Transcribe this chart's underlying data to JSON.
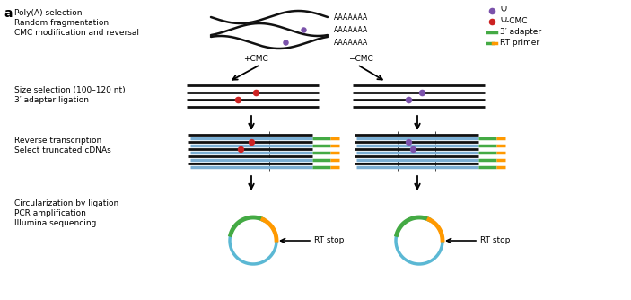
{
  "title": "a",
  "legend": {
    "psi_color": "#7B52AB",
    "psi_cmc_color": "#CC2222",
    "adapter_color": "#44AA44",
    "rt_orange": "#FF9900",
    "psi_label": "Ψ",
    "psi_cmc_label": "Ψ-CMC",
    "adapter_label": "3′ adapter",
    "rt_primer_label": "RT primer"
  },
  "text": {
    "step1": [
      "Poly(A) selection",
      "Random fragmentation",
      "CMC modification and reversal"
    ],
    "step2_left": [
      "Size selection (100–120 nt)",
      "3′ adapter ligation"
    ],
    "step3_left": [
      "Reverse transcription",
      "Select truncated cDNAs"
    ],
    "step4_left": [
      "Circularization by ligation",
      "PCR amplification",
      "Illumina sequencing"
    ],
    "arrow_plus": "+CMC",
    "arrow_minus": "−CMC",
    "rt_stop": "RT stop",
    "poly_a": "AAAAAAA"
  },
  "colors": {
    "background": "#FFFFFF",
    "rna_dark": "#111111",
    "cdna_blue": "#7BAFD4",
    "circle_blue": "#5BB8D4",
    "circle_green": "#44AA44",
    "circle_orange": "#FF9900"
  },
  "layout": {
    "fig_w": 7.03,
    "fig_h": 3.34,
    "dpi": 100
  }
}
